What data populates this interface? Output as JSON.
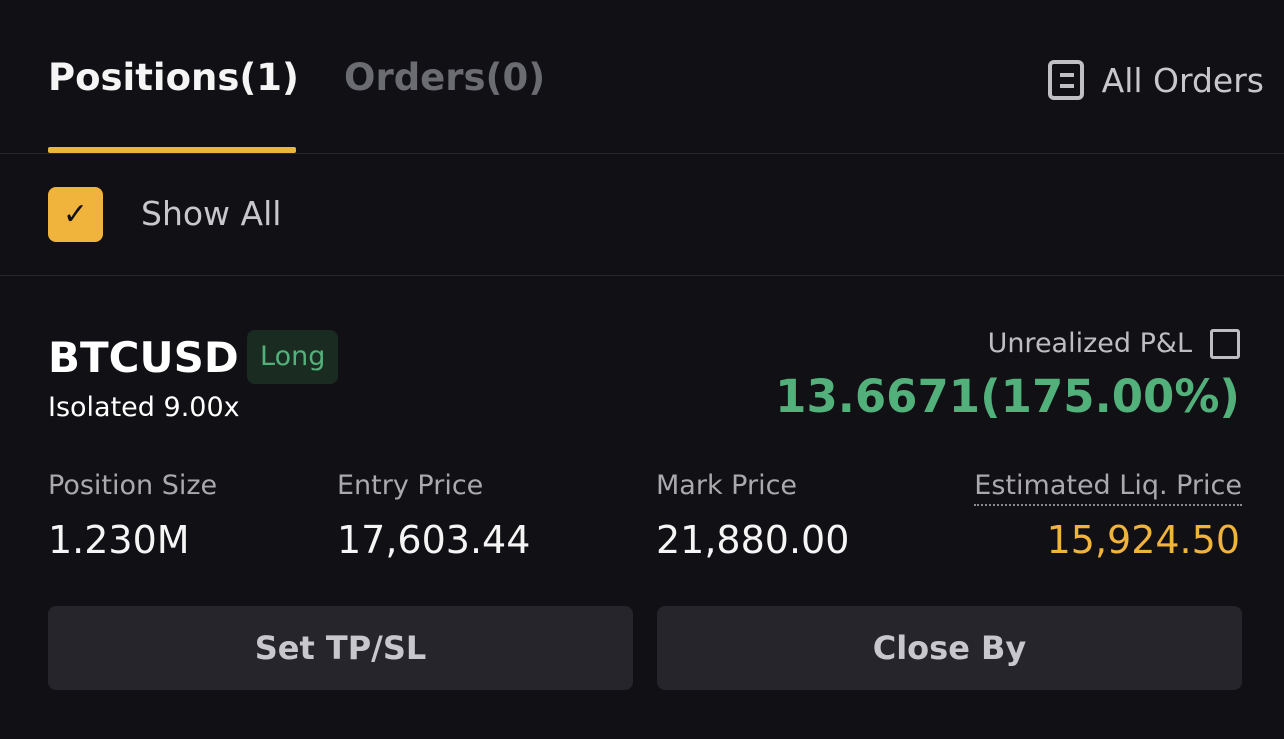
{
  "tabs": [
    {
      "label": "Positions(1)",
      "active": true
    },
    {
      "label": "Orders(0)",
      "active": false
    }
  ],
  "all_orders": {
    "label": "All Orders",
    "icon": "document-list-icon"
  },
  "show_all": {
    "label": "Show All",
    "checked": true
  },
  "position": {
    "symbol": "BTCUSD",
    "side": "Long",
    "margin": "Isolated 9.00x",
    "pnl_label": "Unrealized P&L",
    "pnl_value": "13.6671(175.00%)",
    "fields": [
      {
        "label": "Position Size",
        "value": "1.230M"
      },
      {
        "label": "Entry Price",
        "value": "17,603.44"
      },
      {
        "label": "Mark Price",
        "value": "21,880.00"
      },
      {
        "label": "Estimated Liq. Price",
        "value": "15,924.50"
      }
    ],
    "buttons": {
      "tpsl": "Set TP/SL",
      "close": "Close By"
    }
  },
  "colors": {
    "accent": "#f0b33c",
    "profit": "#52b07a",
    "background": "#111014"
  }
}
